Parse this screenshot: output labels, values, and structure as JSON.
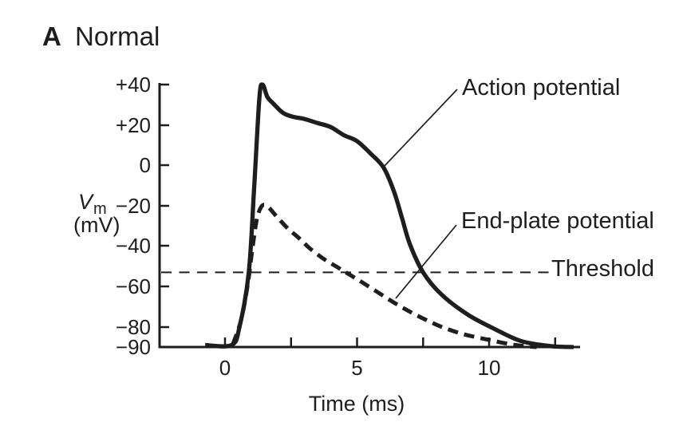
{
  "figure": {
    "panel_label": "A",
    "panel_title": "Normal"
  },
  "colors": {
    "ink": "#1e1e1e",
    "background": "#ffffff"
  },
  "y_axis": {
    "variable": "V",
    "variable_sub": "m",
    "unit": "(mV)",
    "tick_labels": [
      "+40",
      "+20",
      "0",
      "−20",
      "−40",
      "−60",
      "−80",
      "−90"
    ]
  },
  "x_axis": {
    "label": "Time (ms)",
    "tick_labels": [
      "0",
      "5",
      "10"
    ]
  },
  "annotations": {
    "action_potential_label": "Action potential",
    "end_plate_potential_label": "End-plate potential",
    "threshold_label": "Threshold"
  },
  "chart_data": {
    "type": "line",
    "title": "A Normal",
    "xlabel": "Time (ms)",
    "ylabel": "Vm (mV)",
    "xlim": [
      -2.5,
      13.5
    ],
    "ylim": [
      -90,
      40
    ],
    "grid": false,
    "y_ticks": [
      40,
      20,
      0,
      -20,
      -40,
      -60,
      -80,
      -90
    ],
    "x_ticks_labeled": [
      0,
      5,
      10
    ],
    "x_ticks_minor": [
      2.5,
      7.5,
      12.5
    ],
    "threshold_mV": -53,
    "resting_potential_mV": -90,
    "series": [
      {
        "name": "Action potential",
        "style": "solid",
        "points": [
          [
            -0.75,
            -89
          ],
          [
            0.25,
            -89
          ],
          [
            0.55,
            -80
          ],
          [
            0.9,
            -53
          ],
          [
            1.1,
            -12
          ],
          [
            1.3,
            33
          ],
          [
            1.42,
            40
          ],
          [
            1.6,
            34
          ],
          [
            1.8,
            31
          ],
          [
            2.2,
            26
          ],
          [
            2.6,
            24
          ],
          [
            3.0,
            23
          ],
          [
            3.5,
            21
          ],
          [
            4.0,
            19
          ],
          [
            4.5,
            15
          ],
          [
            5.0,
            12
          ],
          [
            5.5,
            6
          ],
          [
            6.0,
            -1
          ],
          [
            6.4,
            -13
          ],
          [
            6.7,
            -26
          ],
          [
            7.0,
            -39
          ],
          [
            7.5,
            -53
          ],
          [
            8.2,
            -64
          ],
          [
            9.2,
            -74
          ],
          [
            10.2,
            -81
          ],
          [
            11.2,
            -87
          ],
          [
            12.3,
            -89.5
          ],
          [
            13.2,
            -90
          ]
        ]
      },
      {
        "name": "End-plate potential",
        "style": "dashed",
        "points": [
          [
            0.3,
            -88.5
          ],
          [
            0.6,
            -77
          ],
          [
            0.85,
            -60
          ],
          [
            1.05,
            -40
          ],
          [
            1.2,
            -27
          ],
          [
            1.35,
            -21
          ],
          [
            1.5,
            -19.5
          ],
          [
            1.7,
            -21.5
          ],
          [
            2.0,
            -26
          ],
          [
            2.4,
            -31.5
          ],
          [
            2.8,
            -36
          ],
          [
            3.2,
            -41
          ],
          [
            3.7,
            -46
          ],
          [
            4.2,
            -50
          ],
          [
            4.7,
            -54
          ],
          [
            5.2,
            -58
          ],
          [
            5.8,
            -63
          ],
          [
            6.4,
            -68
          ],
          [
            7.0,
            -72.5
          ],
          [
            7.6,
            -76.5
          ],
          [
            8.2,
            -80
          ],
          [
            9.0,
            -83.5
          ],
          [
            10.0,
            -86.5
          ],
          [
            11.0,
            -89
          ],
          [
            11.8,
            -90
          ]
        ]
      }
    ]
  }
}
